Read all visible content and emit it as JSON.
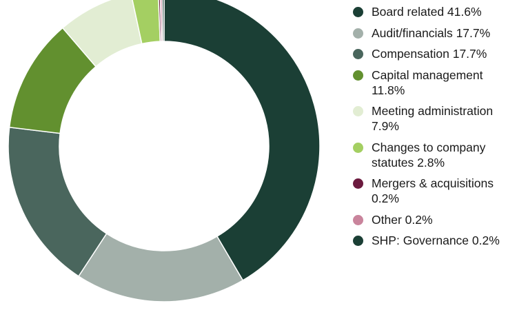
{
  "chart_data": {
    "type": "pie",
    "style": "donut",
    "title": "",
    "legend_position": "right",
    "slices": [
      {
        "label": "Board related",
        "value": 41.6,
        "display": "Board related 41.6%",
        "color": "#1b3f35"
      },
      {
        "label": "Audit/financials",
        "value": 17.7,
        "display": "Audit/financials 17.7%",
        "color": "#a3b0aa"
      },
      {
        "label": "Compensation",
        "value": 17.7,
        "display": "Compensation 17.7%",
        "color": "#4a665d"
      },
      {
        "label": "Capital management",
        "value": 11.8,
        "display": "Capital management 11.8%",
        "color": "#62902f"
      },
      {
        "label": "Meeting administration",
        "value": 7.9,
        "display": "Meeting administration 7.9%",
        "color": "#e2edd3"
      },
      {
        "label": "Changes to company statutes",
        "value": 2.8,
        "display": "Changes to company statutes 2.8%",
        "color": "#a4cf62"
      },
      {
        "label": "Mergers & acquisitions",
        "value": 0.2,
        "display": "Mergers & acquisitions 0.2%",
        "color": "#6b1a3e"
      },
      {
        "label": "Other",
        "value": 0.2,
        "display": "Other 0.2%",
        "color": "#c9849c"
      },
      {
        "label": "SHP: Governance",
        "value": 0.2,
        "display": "SHP: Governance 0.2%",
        "color": "#1b3f35"
      }
    ]
  }
}
